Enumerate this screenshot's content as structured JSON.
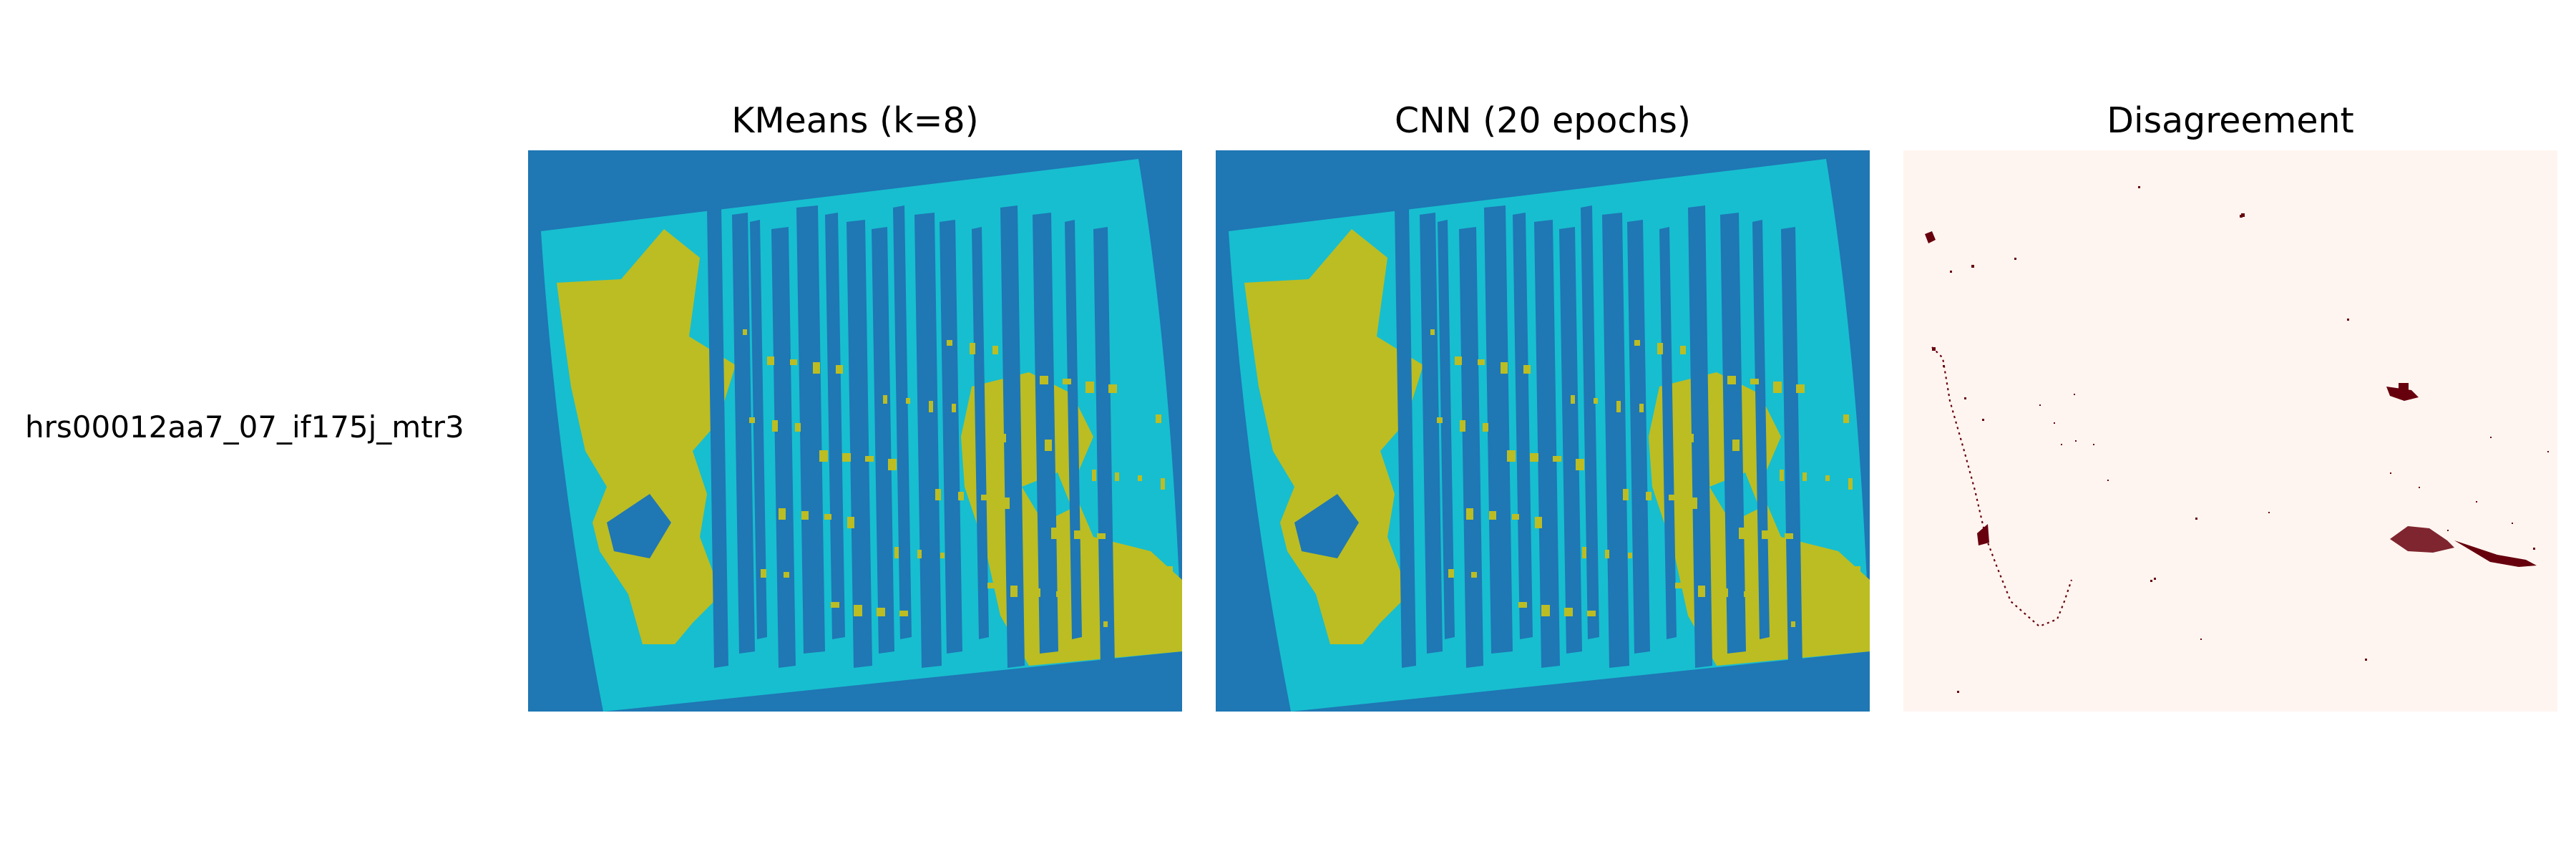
{
  "figure": {
    "row_label": "hrs00012aa7_07_if175j_mtr3",
    "panels": [
      {
        "title": "KMeans (k=8)"
      },
      {
        "title": "CNN (20 epochs)"
      },
      {
        "title": "Disagreement"
      }
    ]
  },
  "colors": {
    "background_class": "#1f77b4",
    "cyan_class": "#17becf",
    "olive_class": "#bcbd22",
    "disagreement_background": "#fff5f0",
    "disagreement_marks": "#67000d"
  }
}
